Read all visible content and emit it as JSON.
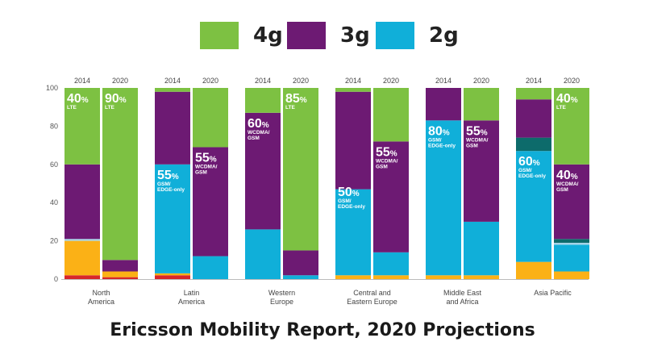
{
  "chart_data": {
    "type": "stacked-bar",
    "title": "Ericsson Mobility Report, 2020 Projections",
    "ylim": [
      0,
      100
    ],
    "yticks": [
      0,
      20,
      40,
      60,
      80,
      100
    ],
    "legend": [
      {
        "key": "4g",
        "label": "4g",
        "color": "#7dc142"
      },
      {
        "key": "3g",
        "label": "3g",
        "color": "#6d1a73"
      },
      {
        "key": "2g",
        "label": "2g",
        "color": "#10afd9"
      }
    ],
    "colors": {
      "red": "#d7262a",
      "orange": "#fbb116",
      "teal": "#0d6b6b",
      "lightblue": "#a5d3e6",
      "purple": "#6d1a73",
      "blue": "#10afd9",
      "green": "#7dc142"
    },
    "groups": [
      {
        "region": "North\nAmerica",
        "bars": [
          {
            "year": "2014",
            "segments": [
              [
                "red",
                2
              ],
              [
                "orange",
                18
              ],
              [
                "lightblue",
                1
              ],
              [
                "purple",
                39
              ],
              [
                "green",
                40
              ]
            ],
            "labels": [
              {
                "pct": "40",
                "sub": "LTE",
                "at": 100
              }
            ]
          },
          {
            "year": "2020",
            "segments": [
              [
                "red",
                1
              ],
              [
                "orange",
                3
              ],
              [
                "purple",
                6
              ],
              [
                "green",
                90
              ]
            ],
            "labels": [
              {
                "pct": "90",
                "sub": "LTE",
                "at": 100
              }
            ]
          }
        ]
      },
      {
        "region": "Latin\nAmerica",
        "bars": [
          {
            "year": "2014",
            "segments": [
              [
                "red",
                2
              ],
              [
                "orange",
                1
              ],
              [
                "blue",
                57
              ],
              [
                "purple",
                38
              ],
              [
                "green",
                2
              ]
            ],
            "labels": [
              {
                "pct": "55",
                "sub": "GSM/\nEDGE-only",
                "at": 60
              }
            ]
          },
          {
            "year": "2020",
            "segments": [
              [
                "blue",
                12
              ],
              [
                "purple",
                57
              ],
              [
                "green",
                31
              ]
            ],
            "labels": [
              {
                "pct": "55",
                "sub": "WCDMA/\nGSM",
                "at": 69
              }
            ]
          }
        ]
      },
      {
        "region": "Western\nEurope",
        "bars": [
          {
            "year": "2014",
            "segments": [
              [
                "blue",
                26
              ],
              [
                "purple",
                61
              ],
              [
                "green",
                13
              ]
            ],
            "labels": [
              {
                "pct": "60",
                "sub": "WCDMA/\nGSM",
                "at": 87
              }
            ]
          },
          {
            "year": "2020",
            "segments": [
              [
                "blue",
                2
              ],
              [
                "purple",
                13
              ],
              [
                "green",
                85
              ]
            ],
            "labels": [
              {
                "pct": "85",
                "sub": "LTE",
                "at": 100
              }
            ]
          }
        ]
      },
      {
        "region": "Central and\nEastern Europe",
        "bars": [
          {
            "year": "2014",
            "segments": [
              [
                "orange",
                2
              ],
              [
                "blue",
                45
              ],
              [
                "purple",
                51
              ],
              [
                "green",
                2
              ]
            ],
            "labels": [
              {
                "pct": "50",
                "sub": "GSM/\nEDGE-only",
                "at": 51
              }
            ]
          },
          {
            "year": "2020",
            "segments": [
              [
                "orange",
                2
              ],
              [
                "blue",
                12
              ],
              [
                "purple",
                58
              ],
              [
                "green",
                28
              ]
            ],
            "labels": [
              {
                "pct": "55",
                "sub": "WCDMA/\nGSM",
                "at": 72
              }
            ]
          }
        ]
      },
      {
        "region": "Middle East\nand Africa",
        "bars": [
          {
            "year": "2014",
            "segments": [
              [
                "orange",
                2
              ],
              [
                "blue",
                81
              ],
              [
                "purple",
                17
              ]
            ],
            "labels": [
              {
                "pct": "80",
                "sub": "GSM/\nEDGE-only",
                "at": 83
              }
            ]
          },
          {
            "year": "2020",
            "segments": [
              [
                "orange",
                2
              ],
              [
                "blue",
                28
              ],
              [
                "purple",
                53
              ],
              [
                "green",
                17
              ]
            ],
            "labels": [
              {
                "pct": "55",
                "sub": "WCDMA/\nGSM",
                "at": 83
              }
            ]
          }
        ]
      },
      {
        "region": "Asia Pacific",
        "bars": [
          {
            "year": "2014",
            "segments": [
              [
                "orange",
                9
              ],
              [
                "blue",
                58
              ],
              [
                "teal",
                7
              ],
              [
                "purple",
                20
              ],
              [
                "green",
                6
              ]
            ],
            "labels": [
              {
                "pct": "60",
                "sub": "GSM/\nEDGE-only",
                "at": 67
              }
            ]
          },
          {
            "year": "2020",
            "segments": [
              [
                "orange",
                4
              ],
              [
                "blue",
                14
              ],
              [
                "lightblue",
                1
              ],
              [
                "teal",
                2
              ],
              [
                "purple",
                39
              ],
              [
                "green",
                40
              ]
            ],
            "labels": [
              {
                "pct": "40",
                "sub": "LTE",
                "at": 100
              },
              {
                "pct": "40",
                "sub": "WCDMA/\nGSM",
                "at": 60
              }
            ]
          }
        ]
      }
    ]
  }
}
